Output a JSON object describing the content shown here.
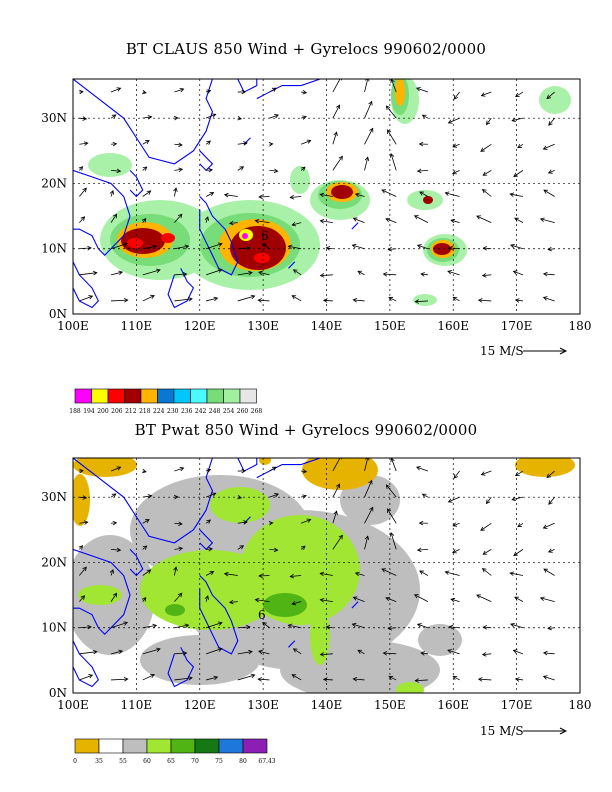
{
  "panel1": {
    "title": "BT CLAUS 850 Wind + Gyrelocs 990602/0000",
    "field": "CLAUS",
    "legend_values": [
      "188",
      "194",
      "200",
      "206",
      "212",
      "218",
      "224",
      "230",
      "236",
      "242",
      "248",
      "254",
      "260",
      "268"
    ],
    "legend_colors": [
      "#ff00ff",
      "#ffff00",
      "#ff0000",
      "#a00000",
      "#ffb400",
      "#0a78d2",
      "#00c8ff",
      "#4bfaff",
      "#78dc78",
      "#a0f0a0",
      "#e6e6e6"
    ],
    "storm_marker": "6"
  },
  "panel2": {
    "title": "BT Pwat 850 Wind + Gyrelocs 990602/0000",
    "field": "Pwat",
    "legend_values": [
      "0",
      "35",
      "55",
      "60",
      "65",
      "70",
      "75",
      "80",
      "67.43"
    ],
    "legend_colors": [
      "#e6b400",
      "#ffffff",
      "#bebebe",
      "#a0e632",
      "#50b414",
      "#147814",
      "#1e78dc",
      "#8c1eb4"
    ],
    "storm_marker": "6"
  },
  "axes": {
    "x_ticks": [
      "100E",
      "110E",
      "120E",
      "130E",
      "140E",
      "150E",
      "160E",
      "170E",
      "180"
    ],
    "y_ticks": [
      "0N",
      "10N",
      "20N",
      "30N"
    ],
    "lon_range": [
      100,
      180
    ],
    "lat_range": [
      0,
      36
    ],
    "ref_vector_label": "15 M/S"
  },
  "colors": {
    "coastline": "#0000ff",
    "grid": "#000000"
  }
}
